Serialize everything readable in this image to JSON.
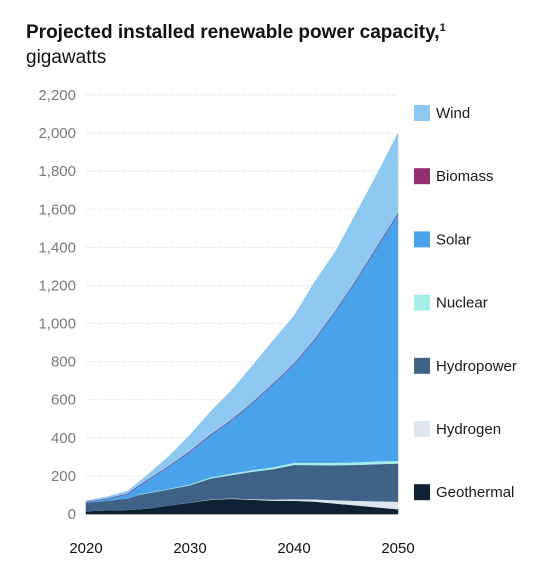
{
  "header": {
    "title_bold": "Projected installed renewable power capacity,",
    "footnote": "1",
    "unit": "gigawatts"
  },
  "chart_data": {
    "type": "area",
    "stacked": true,
    "title": "Projected installed renewable power capacity, gigawatts",
    "xlabel": "",
    "ylabel": "",
    "xlim": [
      2020,
      2050
    ],
    "ylim": [
      0,
      2200
    ],
    "x_ticks": [
      2020,
      2030,
      2040,
      2050
    ],
    "y_ticks": [
      0,
      200,
      400,
      600,
      800,
      1000,
      1200,
      1400,
      1600,
      1800,
      2000,
      2200
    ],
    "y_tick_labels": [
      "0",
      "200",
      "400",
      "600",
      "800",
      "1,000",
      "1,200",
      "1,400",
      "1,600",
      "1,800",
      "2,000",
      "2,200"
    ],
    "grid": "horizontal",
    "legend_position": "right",
    "x": [
      2020,
      2022,
      2024,
      2025,
      2026,
      2028,
      2030,
      2032,
      2034,
      2036,
      2038,
      2040,
      2042,
      2044,
      2046,
      2048,
      2050
    ],
    "series": [
      {
        "name": "Geothermal",
        "color": "#0f2233",
        "values": [
          15,
          20,
          22,
          25,
          30,
          45,
          60,
          75,
          80,
          75,
          70,
          70,
          65,
          55,
          45,
          35,
          25
        ]
      },
      {
        "name": "Hydrogen",
        "color": "#dfe6ef",
        "values": [
          0,
          0,
          0,
          0,
          0,
          0,
          1,
          2,
          3,
          4,
          6,
          8,
          12,
          18,
          25,
          32,
          40
        ]
      },
      {
        "name": "Hydropower",
        "color": "#3f6286",
        "values": [
          45,
          50,
          60,
          75,
          80,
          85,
          90,
          110,
          122,
          143,
          160,
          180,
          180,
          183,
          188,
          195,
          200
        ]
      },
      {
        "name": "Nuclear",
        "color": "#a6ece9",
        "values": [
          0,
          0,
          1,
          2,
          3,
          4,
          5,
          7,
          8,
          9,
          10,
          12,
          13,
          14,
          14,
          15,
          15
        ]
      },
      {
        "name": "Solar",
        "color": "#4aa3ea",
        "values": [
          5,
          12,
          25,
          45,
          70,
          120,
          175,
          225,
          283,
          355,
          440,
          520,
          650,
          800,
          960,
          1130,
          1300
        ]
      },
      {
        "name": "Biomass",
        "color": "#93306f",
        "values": [
          0,
          0,
          0,
          0,
          0,
          0,
          0,
          0,
          0,
          0,
          0,
          0,
          0,
          0,
          0,
          0,
          0
        ]
      },
      {
        "name": "Wind",
        "color": "#8cc8ef",
        "values": [
          5,
          8,
          12,
          18,
          27,
          50,
          85,
          120,
          154,
          192,
          226,
          250,
          300,
          310,
          350,
          380,
          420
        ]
      }
    ]
  }
}
